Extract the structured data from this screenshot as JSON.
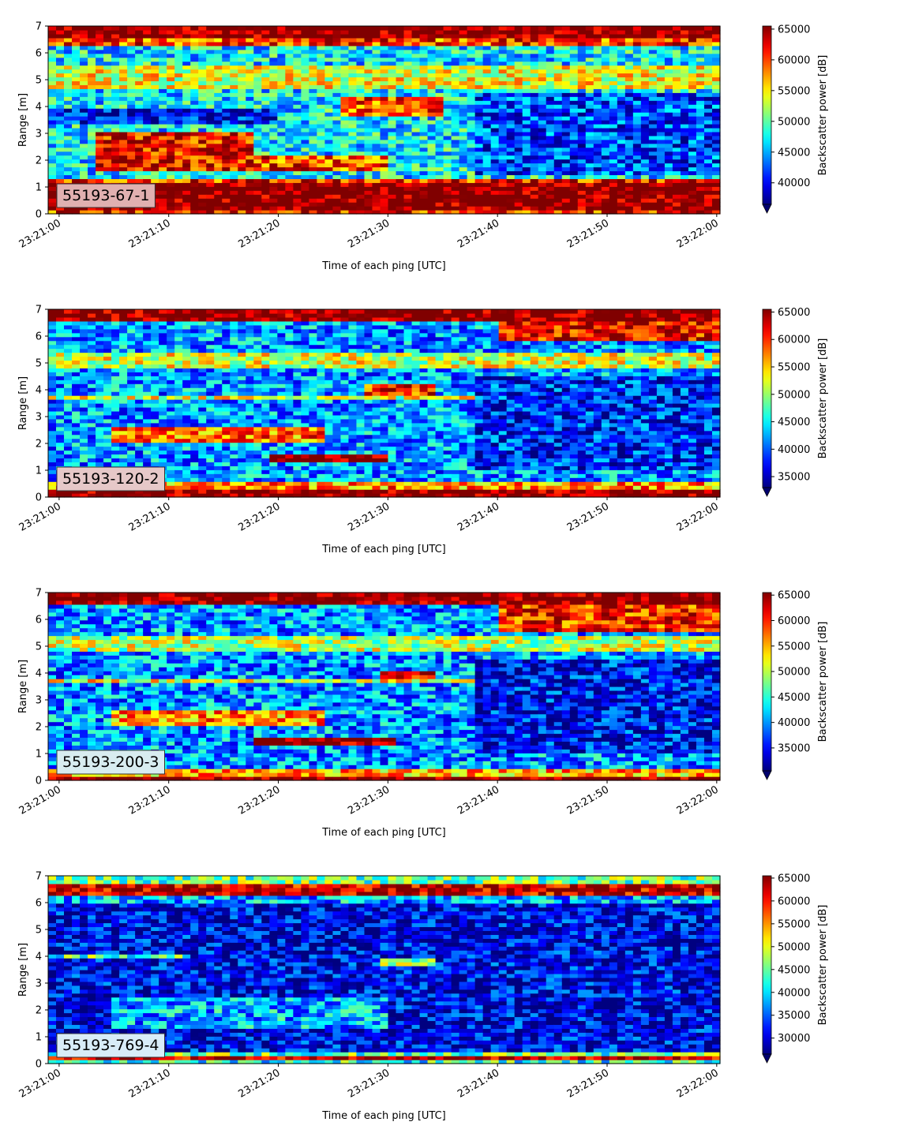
{
  "chart_data": [
    {
      "type": "heatmap",
      "panel_label": "55193-67-1",
      "label_box_color": "#e0b0b0",
      "xlabel": "Time of each ping [UTC]",
      "ylabel": "Range [m]",
      "x_ticks": [
        "23:21:00",
        "23:21:10",
        "23:21:20",
        "23:21:30",
        "23:21:40",
        "23:21:50",
        "23:22:00"
      ],
      "xlim_seconds": [
        -1,
        60.3
      ],
      "ylim": [
        0,
        7
      ],
      "y_ticks": [
        0,
        1,
        2,
        3,
        4,
        5,
        6,
        7
      ],
      "colorbar": {
        "label": "Backscatter power [dB]",
        "colormap": "jet",
        "min": 36500,
        "max": 65500,
        "ticks": [
          40000,
          45000,
          50000,
          55000,
          60000,
          65000
        ],
        "extend": "min"
      },
      "features": [
        {
          "t": [
            -1,
            60.3
          ],
          "r": [
            0.0,
            0.2
          ],
          "value": 61000
        },
        {
          "t": [
            -1,
            60.3
          ],
          "r": [
            0.2,
            1.1
          ],
          "value": 66000
        },
        {
          "t": [
            -1,
            60.3
          ],
          "r": [
            1.1,
            1.25
          ],
          "value": 61000
        },
        {
          "t": [
            -1,
            60.3
          ],
          "r": [
            6.5,
            7.0
          ],
          "value": 66000
        },
        {
          "t": [
            -1,
            60.3
          ],
          "r": [
            6.25,
            6.5
          ],
          "value": 60000
        },
        {
          "t": [
            3,
            18
          ],
          "r": [
            1.6,
            3.0
          ],
          "value": 62000
        },
        {
          "t": [
            18,
            30
          ],
          "r": [
            1.6,
            2.2
          ],
          "value": 60000
        },
        {
          "t": [
            26,
            35
          ],
          "r": [
            3.6,
            4.4
          ],
          "value": 60000
        },
        {
          "t": [
            -1,
            20
          ],
          "r": [
            3.4,
            4.0
          ],
          "value": 40000
        },
        {
          "t": [
            38,
            60
          ],
          "r": [
            1.5,
            4.5
          ],
          "value": 42000
        },
        {
          "t": [
            -1,
            60.3
          ],
          "r": [
            4.6,
            5.6
          ],
          "value": 54000
        }
      ],
      "background": 47000
    },
    {
      "type": "heatmap",
      "panel_label": "55193-120-2",
      "label_box_color": "#e6c8c8",
      "xlabel": "Time of each ping [UTC]",
      "ylabel": "Range [m]",
      "x_ticks": [
        "23:21:00",
        "23:21:10",
        "23:21:20",
        "23:21:30",
        "23:21:40",
        "23:21:50",
        "23:22:00"
      ],
      "xlim_seconds": [
        -1,
        60.3
      ],
      "ylim": [
        0,
        7
      ],
      "y_ticks": [
        0,
        1,
        2,
        3,
        4,
        5,
        6,
        7
      ],
      "colorbar": {
        "label": "Backscatter power [dB]",
        "colormap": "jet",
        "min": 33000,
        "max": 65500,
        "ticks": [
          35000,
          40000,
          45000,
          50000,
          55000,
          60000,
          65000
        ],
        "extend": "min"
      },
      "features": [
        {
          "t": [
            -1,
            60.3
          ],
          "r": [
            0.0,
            0.35
          ],
          "value": 66000
        },
        {
          "t": [
            -1,
            60.3
          ],
          "r": [
            0.35,
            0.55
          ],
          "value": 57000
        },
        {
          "t": [
            -1,
            60.3
          ],
          "r": [
            6.5,
            7.0
          ],
          "value": 66000
        },
        {
          "t": [
            40,
            60.3
          ],
          "r": [
            5.8,
            6.5
          ],
          "value": 62000
        },
        {
          "t": [
            19,
            30
          ],
          "r": [
            1.3,
            1.6
          ],
          "value": 66000
        },
        {
          "t": [
            5,
            24
          ],
          "r": [
            2.0,
            2.6
          ],
          "value": 58000
        },
        {
          "t": [
            28,
            34
          ],
          "r": [
            3.6,
            4.2
          ],
          "value": 60000
        },
        {
          "t": [
            -1,
            60.3
          ],
          "r": [
            3.6,
            3.8
          ],
          "value": 52000
        },
        {
          "t": [
            38,
            60
          ],
          "r": [
            1.0,
            4.5
          ],
          "value": 38000
        },
        {
          "t": [
            -1,
            60.3
          ],
          "r": [
            4.8,
            5.4
          ],
          "value": 52000
        }
      ],
      "background": 42000
    },
    {
      "type": "heatmap",
      "panel_label": "55193-200-3",
      "label_box_color": "#d8ecf0",
      "xlabel": "Time of each ping [UTC]",
      "ylabel": "Range [m]",
      "x_ticks": [
        "23:21:00",
        "23:21:10",
        "23:21:20",
        "23:21:30",
        "23:21:40",
        "23:21:50",
        "23:22:00"
      ],
      "xlim_seconds": [
        -1,
        60.3
      ],
      "ylim": [
        0,
        7
      ],
      "y_ticks": [
        0,
        1,
        2,
        3,
        4,
        5,
        6,
        7
      ],
      "colorbar": {
        "label": "Backscatter power [dB]",
        "colormap": "jet",
        "min": 30500,
        "max": 65500,
        "ticks": [
          35000,
          40000,
          45000,
          50000,
          55000,
          60000,
          65000
        ],
        "extend": "min"
      },
      "features": [
        {
          "t": [
            -1,
            60.3
          ],
          "r": [
            0.0,
            0.2
          ],
          "value": 66000
        },
        {
          "t": [
            -1,
            60.3
          ],
          "r": [
            0.2,
            0.45
          ],
          "value": 55000
        },
        {
          "t": [
            -1,
            60.3
          ],
          "r": [
            6.5,
            7.0
          ],
          "value": 66000
        },
        {
          "t": [
            40,
            60.3
          ],
          "r": [
            5.6,
            6.5
          ],
          "value": 60000
        },
        {
          "t": [
            18,
            31
          ],
          "r": [
            1.3,
            1.6
          ],
          "value": 66000
        },
        {
          "t": [
            5,
            24
          ],
          "r": [
            2.0,
            2.6
          ],
          "value": 56000
        },
        {
          "t": [
            29,
            34
          ],
          "r": [
            3.6,
            4.1
          ],
          "value": 61000
        },
        {
          "t": [
            -1,
            60.3
          ],
          "r": [
            3.6,
            3.8
          ],
          "value": 52000
        },
        {
          "t": [
            38,
            60
          ],
          "r": [
            1.0,
            4.5
          ],
          "value": 35000
        },
        {
          "t": [
            -1,
            60.3
          ],
          "r": [
            4.8,
            5.4
          ],
          "value": 50000
        }
      ],
      "background": 40000
    },
    {
      "type": "heatmap",
      "panel_label": "55193-769-4",
      "label_box_color": "#d8ecf8",
      "xlabel": "Time of each ping [UTC]",
      "ylabel": "Range [m]",
      "x_ticks": [
        "23:21:00",
        "23:21:10",
        "23:21:20",
        "23:21:30",
        "23:21:40",
        "23:21:50",
        "23:22:00"
      ],
      "xlim_seconds": [
        -1,
        60.3
      ],
      "ylim": [
        0,
        7
      ],
      "y_ticks": [
        0,
        1,
        2,
        3,
        4,
        5,
        6,
        7
      ],
      "colorbar": {
        "label": "Backscatter power [dB]",
        "colormap": "jet",
        "min": 26500,
        "max": 65500,
        "ticks": [
          30000,
          35000,
          40000,
          45000,
          50000,
          55000,
          60000,
          65000
        ],
        "extend": "min"
      },
      "features": [
        {
          "t": [
            -1,
            60.3
          ],
          "r": [
            0.0,
            0.12
          ],
          "value": 42000
        },
        {
          "t": [
            -1,
            60.3
          ],
          "r": [
            0.12,
            0.25
          ],
          "value": 64000
        },
        {
          "t": [
            -1,
            60.3
          ],
          "r": [
            0.25,
            0.4
          ],
          "value": 45000
        },
        {
          "t": [
            -1,
            60.3
          ],
          "r": [
            6.3,
            6.7
          ],
          "value": 63000
        },
        {
          "t": [
            -1,
            60.3
          ],
          "r": [
            6.7,
            7.0
          ],
          "value": 45000
        },
        {
          "t": [
            -1,
            60.3
          ],
          "r": [
            6.05,
            6.3
          ],
          "value": 38000
        },
        {
          "t": [
            -1,
            12
          ],
          "r": [
            3.9,
            4.1
          ],
          "value": 44000
        },
        {
          "t": [
            29,
            34
          ],
          "r": [
            3.6,
            4.0
          ],
          "value": 45000
        },
        {
          "t": [
            5,
            30
          ],
          "r": [
            1.3,
            2.5
          ],
          "value": 38000
        }
      ],
      "background": 30500
    }
  ]
}
